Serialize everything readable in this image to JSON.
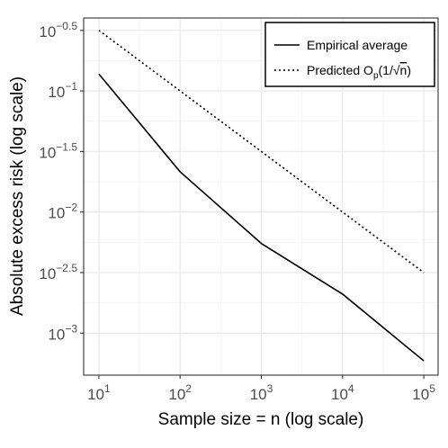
{
  "chart_data": {
    "type": "line",
    "x_scale": "log10",
    "y_scale": "log10",
    "xlabel": "Sample size = n (log scale)",
    "ylabel": "Absolute excess risk (log scale)",
    "x": [
      10,
      100,
      1000,
      10000,
      100000
    ],
    "xlim": [
      6.5,
      150000
    ],
    "ylim": [
      0.00045,
      0.4
    ],
    "x_ticks": [
      {
        "value": 10,
        "base": "10",
        "exp": "1"
      },
      {
        "value": 100,
        "base": "10",
        "exp": "2"
      },
      {
        "value": 1000,
        "base": "10",
        "exp": "3"
      },
      {
        "value": 10000,
        "base": "10",
        "exp": "4"
      },
      {
        "value": 100000,
        "base": "10",
        "exp": "5"
      }
    ],
    "y_ticks": [
      {
        "value": 0.001,
        "base": "10",
        "exp": "−3"
      },
      {
        "value": 0.00316,
        "base": "10",
        "exp": "−2.5"
      },
      {
        "value": 0.01,
        "base": "10",
        "exp": "−2"
      },
      {
        "value": 0.0316,
        "base": "10",
        "exp": "−1.5"
      },
      {
        "value": 0.1,
        "base": "10",
        "exp": "−1"
      },
      {
        "value": 0.316,
        "base": "10",
        "exp": "−0.5"
      }
    ],
    "grid": true,
    "legend_position": "top-right",
    "series": [
      {
        "name": "Empirical average",
        "line_style": "solid",
        "color": "#000000",
        "values": [
          0.138,
          0.0215,
          0.0055,
          0.0021,
          0.00059
        ]
      },
      {
        "name": "Predicted O_p(1/√n)",
        "line_style": "dotted",
        "color": "#000000",
        "values": [
          0.316,
          0.1,
          0.0316,
          0.01,
          0.00316
        ]
      }
    ]
  },
  "legend": {
    "item1": "Empirical average",
    "item2_prefix": "Predicted O",
    "item2_sub": "p",
    "item2_open": "(1",
    "item2_slash": "/",
    "item2_sqrt": "√",
    "item2_n": "n",
    "item2_close": ")"
  }
}
